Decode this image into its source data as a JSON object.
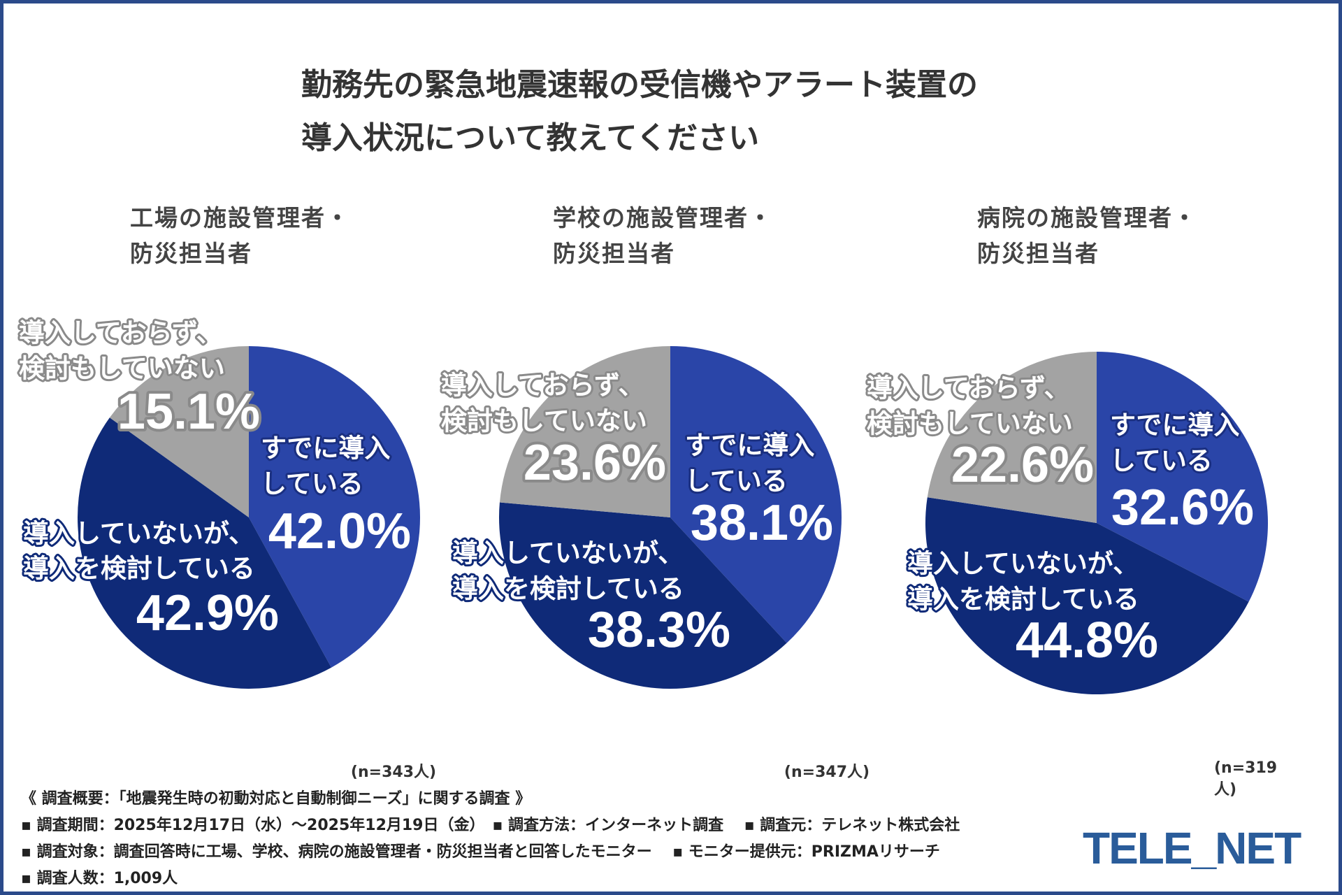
{
  "title": {
    "line1": "勤務先の緊急地震速報の受信機やアラート装置の",
    "line2": "導入状況について教えてください"
  },
  "colors": {
    "already": "#2a45a8",
    "considering": "#0f2a78",
    "not": "#a3a3a3",
    "frame": "#2b4a8a",
    "logo": "#2a5c9a"
  },
  "chart_data": [
    {
      "type": "pie",
      "title_line1": "工場の施設管理者・",
      "title_line2": "防災担当者",
      "n": "(n=343人)",
      "slices": [
        {
          "label_line1": "すでに導入",
          "label_line2": "している",
          "value": 42.0,
          "text": "42.0%"
        },
        {
          "label_line1": "導入していないが、",
          "label_line2": "導入を検討している",
          "value": 42.9,
          "text": "42.9%"
        },
        {
          "label_line1": "導入しておらず、",
          "label_line2": "検討もしていない",
          "value": 15.1,
          "text": "15.1%"
        }
      ]
    },
    {
      "type": "pie",
      "title_line1": "学校の施設管理者・",
      "title_line2": "防災担当者",
      "n": "(n=347人)",
      "slices": [
        {
          "label_line1": "すでに導入",
          "label_line2": "している",
          "value": 38.1,
          "text": "38.1%"
        },
        {
          "label_line1": "導入していないが、",
          "label_line2": "導入を検討している",
          "value": 38.3,
          "text": "38.3%"
        },
        {
          "label_line1": "導入しておらず、",
          "label_line2": "検討もしていない",
          "value": 23.6,
          "text": "23.6%"
        }
      ]
    },
    {
      "type": "pie",
      "title_line1": "病院の施設管理者・",
      "title_line2": "防災担当者",
      "n": "(n=319人)",
      "slices": [
        {
          "label_line1": "すでに導入",
          "label_line2": "している",
          "value": 32.6,
          "text": "32.6%"
        },
        {
          "label_line1": "導入していないが、",
          "label_line2": "導入を検討している",
          "value": 44.8,
          "text": "44.8%"
        },
        {
          "label_line1": "導入しておらず、",
          "label_line2": "検討もしていない",
          "value": 22.6,
          "text": "22.6%"
        }
      ]
    }
  ],
  "footer": {
    "line1": "《 調査概要：「地震発生時の初動対応と自動制御ニーズ」に関する調査 》",
    "line2": "▪ 調査期間：2025年12月17日（水）〜2025年12月19日（金）　▪ 調査方法：インターネット調査　 ▪ 調査元：テレネット株式会社",
    "line3": "▪ 調査対象：調査回答時に工場、学校、病院の施設管理者・防災担当者と回答したモニター　 ▪ モニター提供元：PRIZMAリサーチ",
    "line4": "▪ 調査人数：1,009人"
  },
  "logo": "TELE_NET"
}
